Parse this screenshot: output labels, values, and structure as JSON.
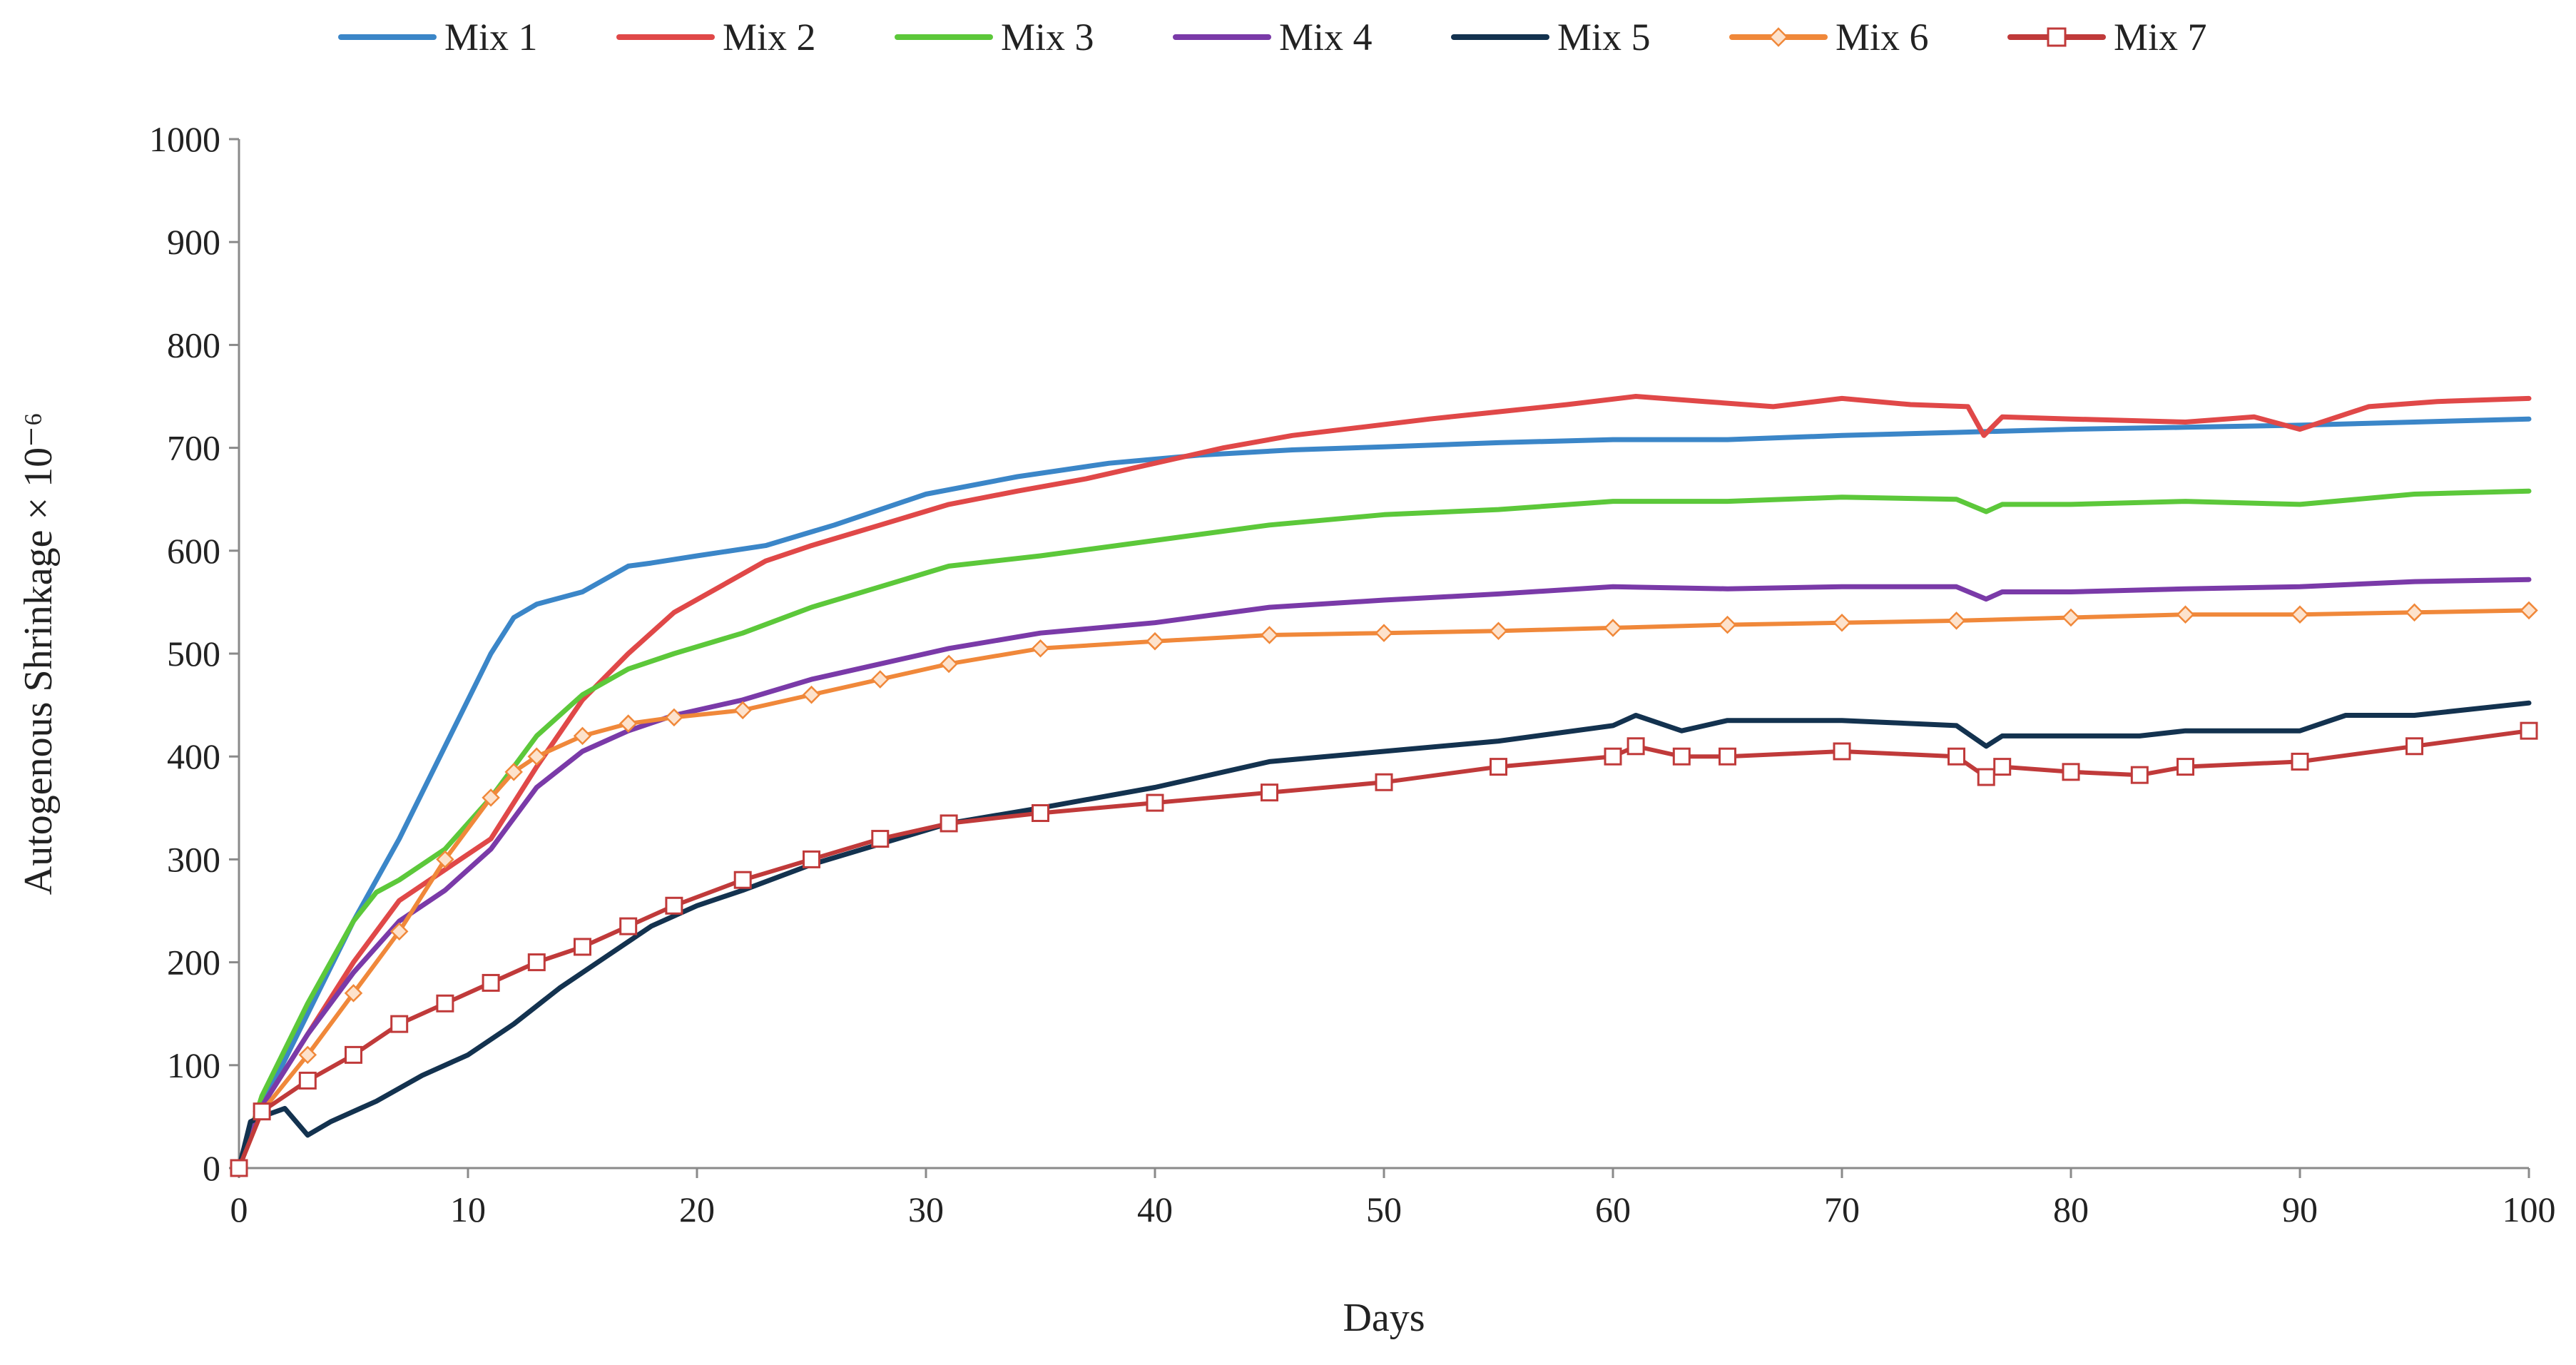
{
  "chart_data": {
    "type": "line",
    "title": "",
    "xlabel": "Days",
    "ylabel": "Autogenous Shrinkage × 10⁻⁶",
    "xlim": [
      0,
      100
    ],
    "ylim": [
      0,
      1000
    ],
    "xticks": [
      "0",
      "10",
      "20",
      "30",
      "40",
      "50",
      "60",
      "70",
      "80",
      "90",
      "100"
    ],
    "yticks": [
      "0",
      "100",
      "200",
      "300",
      "400",
      "500",
      "600",
      "700",
      "800",
      "900",
      "1000"
    ],
    "legend_position": "top",
    "series": [
      {
        "name": "Mix 1",
        "color": "#3b86c8",
        "marker": "none",
        "x": [
          0,
          1,
          3,
          5,
          7,
          9,
          11,
          12,
          13,
          15,
          17,
          18,
          20,
          23,
          26,
          30,
          34,
          38,
          42,
          46,
          50,
          55,
          60,
          65,
          70,
          75,
          80,
          85,
          90,
          95,
          100
        ],
        "y": [
          0,
          60,
          150,
          240,
          320,
          410,
          500,
          535,
          548,
          560,
          585,
          588,
          595,
          605,
          625,
          655,
          672,
          685,
          693,
          698,
          701,
          705,
          708,
          708,
          712,
          715,
          718,
          720,
          722,
          725,
          728
        ]
      },
      {
        "name": "Mix 2",
        "color": "#e04848",
        "marker": "none",
        "x": [
          0,
          1,
          3,
          5,
          7,
          9,
          11,
          13,
          15,
          17,
          19,
          21,
          23,
          25,
          28,
          31,
          34,
          37,
          40,
          43,
          46,
          49,
          52,
          55,
          58,
          61,
          64,
          67,
          70,
          73,
          75.5,
          76.2,
          77,
          80,
          85,
          88,
          90,
          93,
          96,
          100
        ],
        "y": [
          0,
          60,
          130,
          200,
          260,
          290,
          320,
          390,
          455,
          500,
          540,
          565,
          590,
          605,
          625,
          645,
          658,
          670,
          685,
          700,
          712,
          720,
          728,
          735,
          742,
          750,
          745,
          740,
          748,
          742,
          740,
          712,
          730,
          728,
          725,
          730,
          718,
          740,
          745,
          748
        ]
      },
      {
        "name": "Mix 3",
        "color": "#5cc83a",
        "marker": "none",
        "x": [
          0,
          1,
          3,
          5,
          6,
          7,
          9,
          11,
          13,
          15,
          17,
          19,
          22,
          25,
          28,
          31,
          35,
          40,
          45,
          50,
          55,
          60,
          65,
          70,
          75,
          76.3,
          77,
          80,
          85,
          90,
          95,
          100
        ],
        "y": [
          0,
          70,
          160,
          240,
          268,
          280,
          310,
          360,
          420,
          460,
          485,
          500,
          520,
          545,
          565,
          585,
          595,
          610,
          625,
          635,
          640,
          648,
          648,
          652,
          650,
          638,
          645,
          645,
          648,
          645,
          655,
          658
        ]
      },
      {
        "name": "Mix 4",
        "color": "#7a3aa8",
        "marker": "none",
        "x": [
          0,
          1,
          3,
          5,
          7,
          9,
          11,
          13,
          15,
          17,
          19,
          22,
          25,
          28,
          31,
          35,
          40,
          45,
          50,
          55,
          60,
          65,
          70,
          75,
          76.3,
          77,
          80,
          85,
          90,
          95,
          100
        ],
        "y": [
          0,
          60,
          130,
          190,
          240,
          270,
          310,
          370,
          405,
          425,
          440,
          455,
          475,
          490,
          505,
          520,
          530,
          545,
          552,
          558,
          565,
          563,
          565,
          565,
          553,
          560,
          560,
          563,
          565,
          570,
          572
        ]
      },
      {
        "name": "Mix 5",
        "color": "#13324f",
        "marker": "none",
        "x": [
          0,
          0.5,
          1,
          2,
          3,
          4,
          6,
          8,
          10,
          12,
          14,
          16,
          18,
          20,
          22,
          25,
          28,
          31,
          35,
          40,
          45,
          50,
          55,
          60,
          61,
          63,
          65,
          70,
          75,
          76.3,
          77,
          80,
          83,
          85,
          90,
          92,
          95,
          100
        ],
        "y": [
          0,
          45,
          50,
          58,
          32,
          45,
          65,
          90,
          110,
          140,
          175,
          205,
          235,
          255,
          270,
          295,
          315,
          335,
          350,
          370,
          395,
          405,
          415,
          430,
          440,
          425,
          435,
          435,
          430,
          410,
          420,
          420,
          420,
          425,
          425,
          440,
          440,
          452
        ]
      },
      {
        "name": "Mix 6",
        "color": "#f0883a",
        "marker": "diamond",
        "x": [
          0,
          1,
          3,
          5,
          7,
          9,
          11,
          12,
          13,
          15,
          17,
          19,
          22,
          25,
          28,
          31,
          35,
          40,
          45,
          50,
          55,
          60,
          65,
          70,
          75,
          80,
          85,
          90,
          95,
          100
        ],
        "y": [
          0,
          55,
          110,
          170,
          230,
          300,
          360,
          385,
          400,
          420,
          432,
          438,
          445,
          460,
          475,
          490,
          505,
          512,
          518,
          520,
          522,
          525,
          528,
          530,
          532,
          535,
          538,
          538,
          540,
          542
        ]
      },
      {
        "name": "Mix 7",
        "color": "#c03a3a",
        "marker": "square",
        "x": [
          0,
          1,
          3,
          5,
          7,
          9,
          11,
          13,
          15,
          17,
          19,
          22,
          25,
          28,
          31,
          35,
          40,
          45,
          50,
          55,
          60,
          61,
          63,
          65,
          70,
          75,
          76.3,
          77,
          80,
          83,
          85,
          90,
          95,
          100
        ],
        "y": [
          0,
          55,
          85,
          110,
          140,
          160,
          180,
          200,
          215,
          235,
          255,
          280,
          300,
          320,
          335,
          345,
          355,
          365,
          375,
          390,
          400,
          410,
          400,
          400,
          405,
          400,
          380,
          390,
          385,
          382,
          390,
          395,
          410,
          425
        ]
      }
    ]
  }
}
